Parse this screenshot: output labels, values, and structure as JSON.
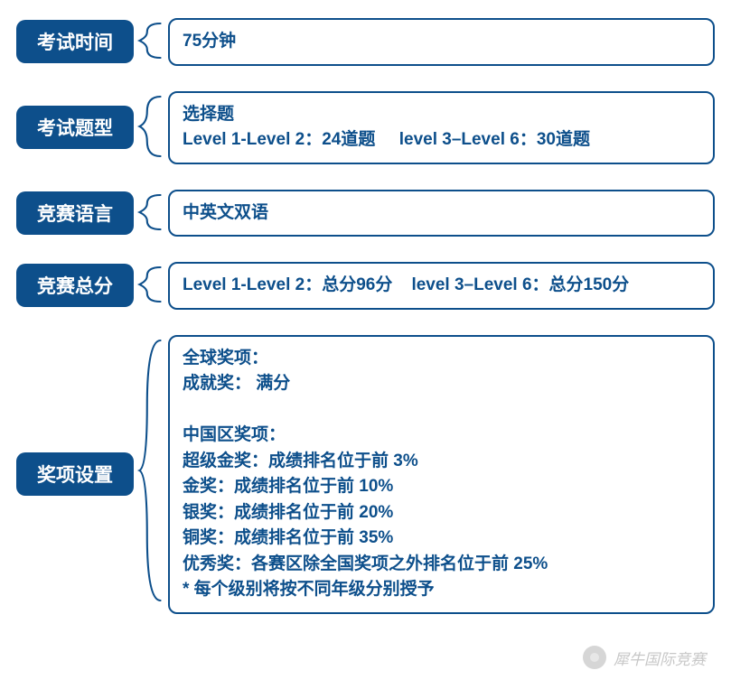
{
  "colors": {
    "primary": "#0d4f8b",
    "white": "#ffffff",
    "watermark": "#b5b5b5"
  },
  "rows": [
    {
      "label": "考试时间",
      "lines": [
        "75分钟"
      ],
      "brace_height": 50
    },
    {
      "label": "考试题型",
      "lines": [
        "选择题",
        "Level 1-Level 2：24道题     level 3–Level 6：30道题"
      ],
      "brace_height": 78
    },
    {
      "label": "竞赛语言",
      "lines": [
        "中英文双语"
      ],
      "brace_height": 50
    },
    {
      "label": "竞赛总分",
      "lines": [
        "Level 1-Level 2：总分96分    level 3–Level 6：总分150分"
      ],
      "brace_height": 50
    },
    {
      "label": "奖项设置",
      "lines": [
        "全球奖项：",
        "成就奖： 满分",
        "",
        "中国区奖项：",
        "超级金奖：成绩排名位于前 3%",
        "金奖：成绩排名位于前 10%",
        "银奖：成绩排名位于前 20%",
        "铜奖：成绩排名位于前 35%",
        "优秀奖：各赛区除全国奖项之外排名位于前 25%",
        "* 每个级别将按不同年级分别授予"
      ],
      "brace_height": 300
    }
  ],
  "watermark": {
    "text": "犀牛国际竞赛",
    "icon_name": "wechat-icon"
  },
  "brace_style": {
    "stroke": "#0d4f8b",
    "stroke_width": 2
  }
}
